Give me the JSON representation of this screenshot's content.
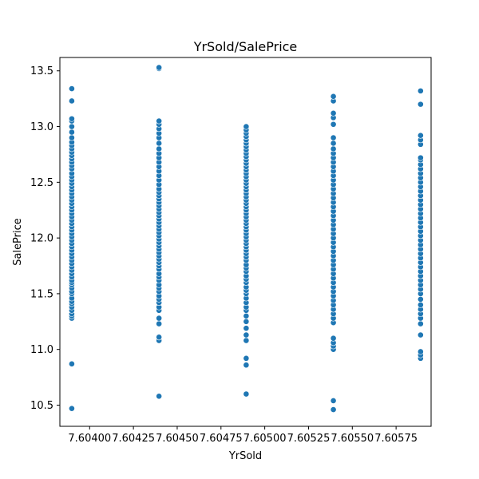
{
  "chart_data": {
    "type": "scatter",
    "title": "YrSold/SalePrice",
    "xlabel": "YrSold",
    "ylabel": "SalePrice",
    "xlim": [
      7.60383,
      7.60595
    ],
    "ylim": [
      10.31,
      13.62
    ],
    "xticks": [
      {
        "value": 7.604,
        "label": "7.60400"
      },
      {
        "value": 7.60425,
        "label": "7.60425"
      },
      {
        "value": 7.6045,
        "label": "7.60450"
      },
      {
        "value": 7.60475,
        "label": "7.60475"
      },
      {
        "value": 7.605,
        "label": "7.60500"
      },
      {
        "value": 7.60525,
        "label": "7.60525"
      },
      {
        "value": 7.6055,
        "label": "7.60550"
      },
      {
        "value": 7.60575,
        "label": "7.60575"
      }
    ],
    "yticks": [
      {
        "value": 10.5,
        "label": "10.5"
      },
      {
        "value": 11.0,
        "label": "11.0"
      },
      {
        "value": 11.5,
        "label": "11.5"
      },
      {
        "value": 12.0,
        "label": "12.0"
      },
      {
        "value": 12.5,
        "label": "12.5"
      },
      {
        "value": 13.0,
        "label": "13.0"
      },
      {
        "value": 13.5,
        "label": "13.5"
      }
    ],
    "grid": false,
    "legend": "none",
    "marker_color": "#1f77b4",
    "series": [
      {
        "x": 7.603898,
        "y": [
          10.47,
          10.87,
          11.28,
          11.3,
          11.32,
          11.35,
          11.38,
          11.41,
          11.43,
          11.46,
          11.5,
          11.52,
          11.55,
          11.58,
          11.6,
          11.62,
          11.65,
          11.68,
          11.71,
          11.74,
          11.77,
          11.8,
          11.83,
          11.86,
          11.89,
          11.92,
          11.95,
          11.98,
          12.01,
          12.04,
          12.07,
          12.1,
          12.13,
          12.16,
          12.19,
          12.22,
          12.25,
          12.28,
          12.31,
          12.34,
          12.37,
          12.4,
          12.43,
          12.46,
          12.49,
          12.52,
          12.55,
          12.58,
          12.62,
          12.65,
          12.68,
          12.71,
          12.74,
          12.77,
          12.8,
          12.83,
          12.86,
          12.9,
          12.95,
          13.0,
          13.05,
          13.07,
          13.23,
          13.34
        ]
      },
      {
        "x": 7.604396,
        "y": [
          10.58,
          11.08,
          11.11,
          11.23,
          11.28,
          11.35,
          11.38,
          11.42,
          11.45,
          11.48,
          11.52,
          11.55,
          11.58,
          11.62,
          11.65,
          11.68,
          11.72,
          11.75,
          11.78,
          11.81,
          11.84,
          11.87,
          11.9,
          11.93,
          11.96,
          11.99,
          12.02,
          12.05,
          12.08,
          12.11,
          12.14,
          12.17,
          12.2,
          12.23,
          12.26,
          12.29,
          12.32,
          12.35,
          12.38,
          12.41,
          12.44,
          12.48,
          12.52,
          12.56,
          12.6,
          12.64,
          12.68,
          12.72,
          12.76,
          12.8,
          12.85,
          12.9,
          12.94,
          12.98,
          13.02,
          13.05,
          13.52,
          13.53
        ]
      },
      {
        "x": 7.604894,
        "y": [
          10.6,
          10.86,
          10.92,
          11.08,
          11.13,
          11.19,
          11.25,
          11.3,
          11.35,
          11.38,
          11.42,
          11.46,
          11.5,
          11.53,
          11.56,
          11.6,
          11.63,
          11.66,
          11.7,
          11.73,
          11.76,
          11.8,
          11.83,
          11.86,
          11.89,
          11.92,
          11.95,
          11.98,
          12.01,
          12.04,
          12.07,
          12.1,
          12.13,
          12.16,
          12.19,
          12.22,
          12.25,
          12.28,
          12.31,
          12.34,
          12.37,
          12.4,
          12.43,
          12.46,
          12.49,
          12.52,
          12.55,
          12.58,
          12.61,
          12.64,
          12.67,
          12.7,
          12.73,
          12.76,
          12.79,
          12.82,
          12.85,
          12.88,
          12.91,
          12.94,
          12.97,
          13.0
        ]
      },
      {
        "x": 7.605392,
        "y": [
          10.46,
          10.54,
          11.0,
          11.03,
          11.06,
          11.1,
          11.24,
          11.28,
          11.32,
          11.36,
          11.4,
          11.44,
          11.48,
          11.52,
          11.56,
          11.6,
          11.64,
          11.68,
          11.72,
          11.76,
          11.8,
          11.84,
          11.88,
          11.92,
          11.96,
          12.0,
          12.04,
          12.08,
          12.12,
          12.16,
          12.2,
          12.24,
          12.28,
          12.32,
          12.36,
          12.4,
          12.44,
          12.48,
          12.52,
          12.56,
          12.6,
          12.64,
          12.68,
          12.72,
          12.76,
          12.8,
          12.85,
          12.9,
          13.02,
          13.08,
          13.12,
          13.23,
          13.27
        ]
      },
      {
        "x": 7.60589,
        "y": [
          10.92,
          10.95,
          10.98,
          11.13,
          11.23,
          11.28,
          11.32,
          11.36,
          11.4,
          11.45,
          11.5,
          11.54,
          11.58,
          11.62,
          11.66,
          11.7,
          11.74,
          11.78,
          11.82,
          11.86,
          11.9,
          11.94,
          11.98,
          12.02,
          12.06,
          12.1,
          12.14,
          12.18,
          12.22,
          12.26,
          12.3,
          12.34,
          12.38,
          12.42,
          12.46,
          12.5,
          12.54,
          12.58,
          12.62,
          12.66,
          12.7,
          12.72,
          12.84,
          12.88,
          12.92,
          13.2,
          13.32
        ]
      }
    ]
  }
}
